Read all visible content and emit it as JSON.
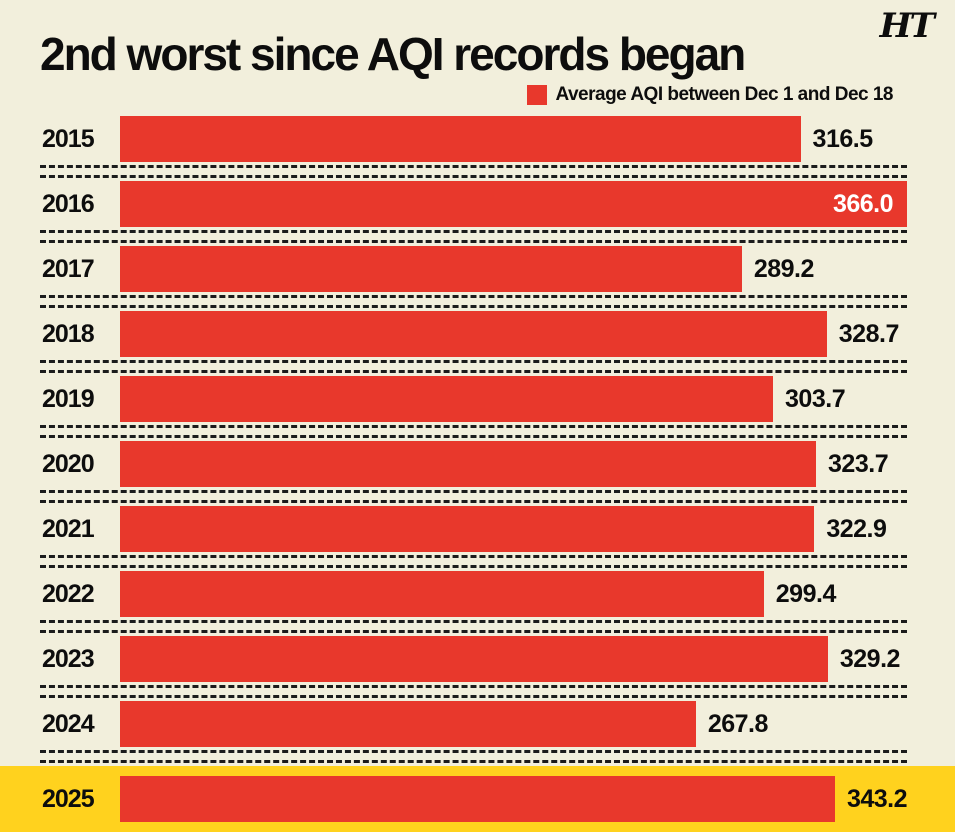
{
  "brand": "HT",
  "header": {
    "title": "2nd worst since AQI records began"
  },
  "legend": {
    "label": "Average AQI between Dec 1 and Dec 18",
    "color": "#e8382c"
  },
  "chart_data": {
    "type": "bar",
    "orientation": "horizontal",
    "title": "2nd worst since AQI records began",
    "legend_label": "Average AQI between Dec 1 and Dec 18",
    "categories": [
      "2015",
      "2016",
      "2017",
      "2018",
      "2019",
      "2020",
      "2021",
      "2022",
      "2023",
      "2024",
      "2025"
    ],
    "values": [
      316.5,
      366.0,
      289.2,
      328.7,
      303.7,
      323.7,
      322.9,
      299.4,
      329.2,
      267.8,
      343.2
    ],
    "xlim": [
      0,
      366
    ],
    "grid": false,
    "highlight_category": "2025",
    "inside_label_categories": [
      "2016"
    ],
    "colors": {
      "bar": "#e8382c",
      "highlight_bg": "#ffd21e",
      "background": "#f2efdc",
      "text": "#0d0d0d",
      "inside_label_text": "#ffffff"
    }
  }
}
